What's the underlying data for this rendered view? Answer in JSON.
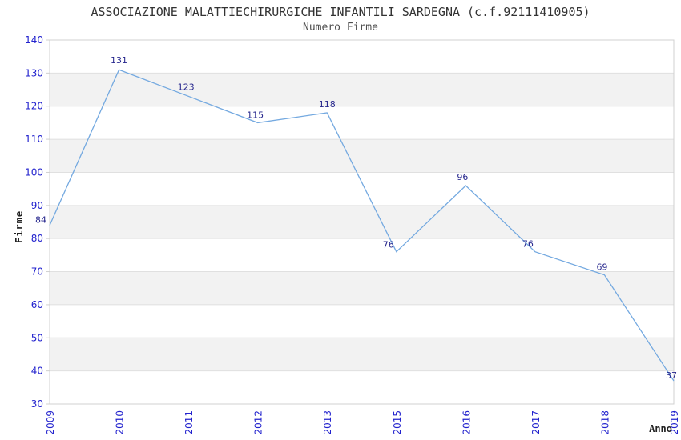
{
  "chart_data": {
    "type": "line",
    "title": "ASSOCIAZIONE MALATTIECHIRURGICHE INFANTILI SARDEGNA (c.f.92111410905)",
    "subtitle": "Numero Firme",
    "xlabel": "Anno",
    "ylabel": "Firme",
    "categories": [
      "2009",
      "2010",
      "2011",
      "2012",
      "2013",
      "2015",
      "2016",
      "2017",
      "2018",
      "2019"
    ],
    "values": [
      84,
      131,
      123,
      115,
      118,
      76,
      96,
      76,
      69,
      37
    ],
    "ylim": [
      30,
      140
    ],
    "ytick_step": 10,
    "grid": "horizontal",
    "banding": true,
    "legend": "none",
    "markers": "none",
    "colors": {
      "line": "#74A9E0",
      "tick_label": "#2323CE",
      "point_label": "#26268D",
      "band": "#F2F2F2",
      "gridline": "#E0E0E0",
      "border": "#D0D0D0",
      "title": "#333333",
      "subtitle": "#4D4D4D",
      "axis_title": "#222222",
      "background": "#FFFFFF"
    }
  }
}
